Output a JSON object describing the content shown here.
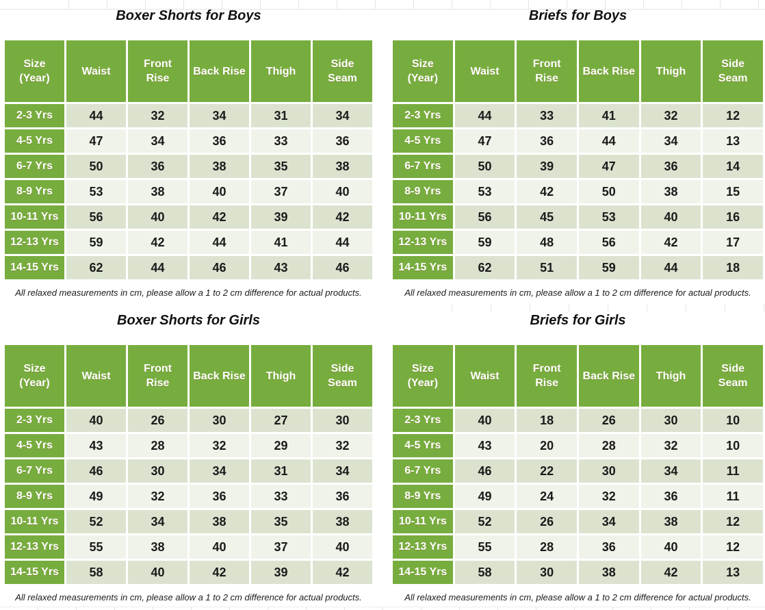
{
  "colors": {
    "header_green": "#77ad3e",
    "row_light": "#dbe3cf",
    "row_lighter": "#eff3e9",
    "text_dark": "#1a1a1a",
    "header_text": "#ffffff"
  },
  "columns": [
    "Size\n(Year)",
    "Waist",
    "Front\nRise",
    "Back Rise",
    "Thigh",
    "Side\nSeam"
  ],
  "sizes": [
    "2-3 Yrs",
    "4-5 Yrs",
    "6-7 Yrs",
    "8-9 Yrs",
    "10-11 Yrs",
    "12-13 Yrs",
    "14-15 Yrs"
  ],
  "footnote": "All relaxed measurements in cm, please allow a 1 to 2 cm difference for actual products.",
  "tables": [
    {
      "title": "Boxer Shorts for Boys",
      "values": [
        [
          44,
          32,
          34,
          31,
          34
        ],
        [
          47,
          34,
          36,
          33,
          36
        ],
        [
          50,
          36,
          38,
          35,
          38
        ],
        [
          53,
          38,
          40,
          37,
          40
        ],
        [
          56,
          40,
          42,
          39,
          42
        ],
        [
          59,
          42,
          44,
          41,
          44
        ],
        [
          62,
          44,
          46,
          43,
          46
        ]
      ]
    },
    {
      "title": "Briefs for Boys",
      "values": [
        [
          44,
          33,
          41,
          32,
          12
        ],
        [
          47,
          36,
          44,
          34,
          13
        ],
        [
          50,
          39,
          47,
          36,
          14
        ],
        [
          53,
          42,
          50,
          38,
          15
        ],
        [
          56,
          45,
          53,
          40,
          16
        ],
        [
          59,
          48,
          56,
          42,
          17
        ],
        [
          62,
          51,
          59,
          44,
          18
        ]
      ]
    },
    {
      "title": "Boxer Shorts for Girls",
      "values": [
        [
          40,
          26,
          30,
          27,
          30
        ],
        [
          43,
          28,
          32,
          29,
          32
        ],
        [
          46,
          30,
          34,
          31,
          34
        ],
        [
          49,
          32,
          36,
          33,
          36
        ],
        [
          52,
          34,
          38,
          35,
          38
        ],
        [
          55,
          38,
          40,
          37,
          40
        ],
        [
          58,
          40,
          42,
          39,
          42
        ]
      ]
    },
    {
      "title": "Briefs for Girls",
      "values": [
        [
          40,
          18,
          26,
          30,
          10
        ],
        [
          43,
          20,
          28,
          32,
          10
        ],
        [
          46,
          22,
          30,
          34,
          11
        ],
        [
          49,
          24,
          32,
          36,
          11
        ],
        [
          52,
          26,
          34,
          38,
          12
        ],
        [
          55,
          28,
          36,
          40,
          12
        ],
        [
          58,
          30,
          38,
          42,
          13
        ]
      ]
    }
  ]
}
